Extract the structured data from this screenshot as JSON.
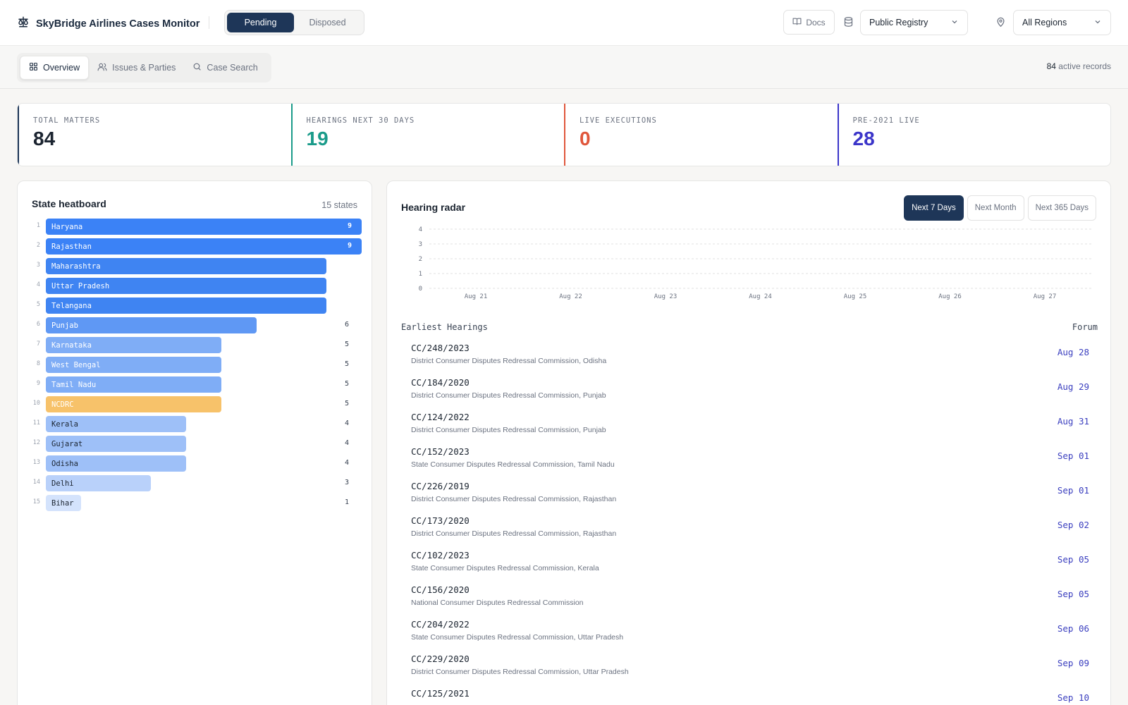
{
  "app": {
    "title": "SkyBridge Airlines Cases Monitor"
  },
  "status_toggle": {
    "pending": "Pending",
    "disposed": "Disposed"
  },
  "header": {
    "docs_label": "Docs",
    "registry_value": "Public Registry",
    "region_value": "All Regions"
  },
  "tabs": [
    {
      "label": "Overview",
      "icon": "grid-icon",
      "active": true
    },
    {
      "label": "Issues & Parties",
      "icon": "users-icon",
      "active": false
    },
    {
      "label": "Case Search",
      "icon": "search-icon",
      "active": false
    }
  ],
  "active_records": {
    "count": "84",
    "label": "active records"
  },
  "kpis": [
    {
      "label": "TOTAL MATTERS",
      "value": "84",
      "color": "#1b2430",
      "border": "#1e3658"
    },
    {
      "label": "HEARINGS NEXT 30 DAYS",
      "value": "19",
      "color": "#1a9b8a",
      "border": "#1a9b8a"
    },
    {
      "label": "LIVE EXECUTIONS",
      "value": "0",
      "color": "#e0563b",
      "border": "#e0563b"
    },
    {
      "label": "PRE-2021 LIVE",
      "value": "28",
      "color": "#3b35c9",
      "border": "#3b35c9"
    }
  ],
  "heatboard": {
    "title": "State heatboard",
    "count_label": "15 states",
    "rows": [
      {
        "rank": "1",
        "state": "Haryana",
        "count": "9",
        "value": 9,
        "color": "#3b82f6",
        "text": "#ffffff"
      },
      {
        "rank": "2",
        "state": "Rajasthan",
        "count": "9",
        "value": 9,
        "color": "#3b82f6",
        "text": "#ffffff"
      },
      {
        "rank": "3",
        "state": "Maharashtra",
        "count": "",
        "value": 8,
        "color": "#3f84f2",
        "text": "#ffffff"
      },
      {
        "rank": "4",
        "state": "Uttar Pradesh",
        "count": "",
        "value": 8,
        "color": "#3f84f2",
        "text": "#ffffff"
      },
      {
        "rank": "5",
        "state": "Telangana",
        "count": "",
        "value": 8,
        "color": "#3f84f2",
        "text": "#ffffff"
      },
      {
        "rank": "6",
        "state": "Punjab",
        "count": "6",
        "value": 6,
        "color": "#5f98f4",
        "text": "#ffffff"
      },
      {
        "rank": "7",
        "state": "Karnataka",
        "count": "5",
        "value": 5,
        "color": "#7fadf6",
        "text": "#ffffff"
      },
      {
        "rank": "8",
        "state": "West Bengal",
        "count": "5",
        "value": 5,
        "color": "#7fadf6",
        "text": "#ffffff"
      },
      {
        "rank": "9",
        "state": "Tamil Nadu",
        "count": "5",
        "value": 5,
        "color": "#7fadf6",
        "text": "#ffffff"
      },
      {
        "rank": "10",
        "state": "NCDRC",
        "count": "5",
        "value": 5,
        "color": "#f7c26a",
        "text": "#ffffff"
      },
      {
        "rank": "11",
        "state": "Kerala",
        "count": "4",
        "value": 4,
        "color": "#9ec0f8",
        "text": "#1b2430"
      },
      {
        "rank": "12",
        "state": "Gujarat",
        "count": "4",
        "value": 4,
        "color": "#9ec0f8",
        "text": "#1b2430"
      },
      {
        "rank": "13",
        "state": "Odisha",
        "count": "4",
        "value": 4,
        "color": "#9ec0f8",
        "text": "#1b2430"
      },
      {
        "rank": "14",
        "state": "Delhi",
        "count": "3",
        "value": 3,
        "color": "#b9d1fa",
        "text": "#1b2430"
      },
      {
        "rank": "15",
        "state": "Bihar",
        "count": "1",
        "value": 1,
        "color": "#d4e3fc",
        "text": "#1b2430"
      }
    ]
  },
  "radar": {
    "title": "Hearing radar",
    "ranges": [
      {
        "label": "Next 7 Days",
        "active": true
      },
      {
        "label": "Next Month",
        "active": false
      },
      {
        "label": "Next 365 Days",
        "active": false
      }
    ]
  },
  "chart_data": {
    "type": "bar",
    "title": "",
    "categories": [
      "Aug 21",
      "Aug 22",
      "Aug 23",
      "Aug 24",
      "Aug 25",
      "Aug 26",
      "Aug 27"
    ],
    "values": [
      0,
      0,
      0,
      0,
      0,
      0,
      0
    ],
    "yticks": [
      "0",
      "1",
      "2",
      "3",
      "4"
    ],
    "ylim": [
      0,
      4
    ],
    "grid": true
  },
  "earliest": {
    "header_left": "Earliest Hearings",
    "header_right": "Forum",
    "items": [
      {
        "case": "CC/248/2023",
        "forum": "District Consumer Disputes Redressal Commission, Odisha",
        "date": "Aug 28"
      },
      {
        "case": "CC/184/2020",
        "forum": "District Consumer Disputes Redressal Commission, Punjab",
        "date": "Aug 29"
      },
      {
        "case": "CC/124/2022",
        "forum": "District Consumer Disputes Redressal Commission, Punjab",
        "date": "Aug 31"
      },
      {
        "case": "CC/152/2023",
        "forum": "State Consumer Disputes Redressal Commission, Tamil Nadu",
        "date": "Sep 01"
      },
      {
        "case": "CC/226/2019",
        "forum": "District Consumer Disputes Redressal Commission, Rajasthan",
        "date": "Sep 01"
      },
      {
        "case": "CC/173/2020",
        "forum": "District Consumer Disputes Redressal Commission, Rajasthan",
        "date": "Sep 02"
      },
      {
        "case": "CC/102/2023",
        "forum": "State Consumer Disputes Redressal Commission, Kerala",
        "date": "Sep 05"
      },
      {
        "case": "CC/156/2020",
        "forum": "National Consumer Disputes Redressal Commission",
        "date": "Sep 05"
      },
      {
        "case": "CC/204/2022",
        "forum": "State Consumer Disputes Redressal Commission, Uttar Pradesh",
        "date": "Sep 06"
      },
      {
        "case": "CC/229/2020",
        "forum": "District Consumer Disputes Redressal Commission, Uttar Pradesh",
        "date": "Sep 09"
      },
      {
        "case": "CC/125/2021",
        "forum": "",
        "date": "Sep 10"
      }
    ]
  }
}
